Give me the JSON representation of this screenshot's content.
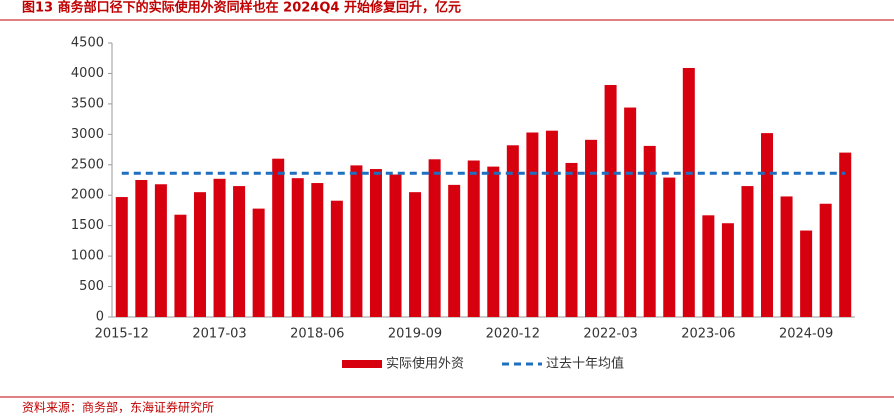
{
  "chart_data": {
    "type": "bar",
    "title": "图13 商务部口径下的实际使用外资同样也在 2024Q4 开始修复回升，亿元",
    "source": "资料来源：商务部，东海证券研究所",
    "categories": [
      "2015-12",
      null,
      null,
      null,
      null,
      "2017-03",
      null,
      null,
      null,
      null,
      "2018-06",
      null,
      null,
      null,
      null,
      "2019-09",
      null,
      null,
      null,
      null,
      "2020-12",
      null,
      null,
      null,
      null,
      "2022-03",
      null,
      null,
      null,
      null,
      "2023-06",
      null,
      null,
      null,
      null,
      "2024-09",
      null,
      null
    ],
    "series": [
      {
        "name": "实际使用外资",
        "type": "bar",
        "color": "#d7000f",
        "values": [
          1970,
          2250,
          2180,
          1680,
          2050,
          2270,
          2150,
          1780,
          2600,
          2280,
          2200,
          1910,
          2490,
          2430,
          2340,
          2050,
          2590,
          2170,
          2570,
          2470,
          2820,
          3030,
          3060,
          2530,
          2910,
          3810,
          3440,
          2810,
          2290,
          4090,
          1670,
          1540,
          2150,
          3020,
          1980,
          1420,
          1860,
          2700
        ]
      },
      {
        "name": "过去十年均值",
        "type": "line",
        "color": "#1f6fc0",
        "values": [
          2360,
          2360,
          2360,
          2360,
          2360,
          2360,
          2360,
          2360,
          2360,
          2360,
          2360,
          2360,
          2360,
          2360,
          2360,
          2360,
          2360,
          2360,
          2360,
          2360,
          2360,
          2360,
          2360,
          2360,
          2360,
          2360,
          2360,
          2360,
          2360,
          2360,
          2360,
          2360,
          2360,
          2360,
          2360,
          2360,
          2360,
          2360
        ]
      }
    ],
    "ylim": [
      0,
      4500
    ],
    "yticks": [
      0,
      500,
      1000,
      1500,
      2000,
      2500,
      3000,
      3500,
      4000,
      4500
    ],
    "legend": "bottom"
  }
}
